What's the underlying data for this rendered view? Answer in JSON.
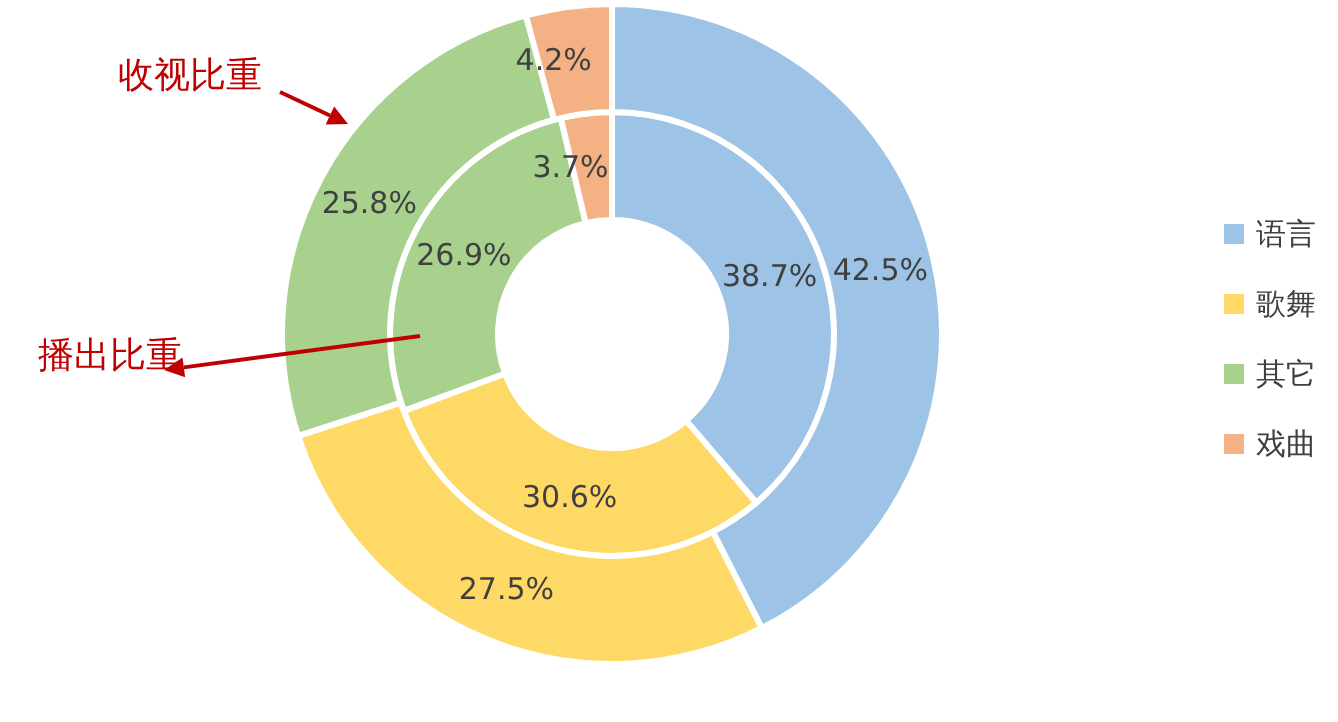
{
  "chart_data": {
    "type": "donut",
    "categories": [
      "语言",
      "歌舞",
      "其它",
      "戏曲"
    ],
    "colors": [
      "#9dc3e6",
      "#ffd966",
      "#a9d18e",
      "#f4b183"
    ],
    "series": [
      {
        "name": "播出比重",
        "values": [
          38.7,
          30.6,
          26.9,
          3.7
        ],
        "value_labels": [
          "38.7%",
          "30.6%",
          "26.9%",
          "3.7%"
        ]
      },
      {
        "name": "收视比重",
        "values": [
          42.5,
          27.5,
          25.8,
          4.2
        ],
        "value_labels": [
          "42.5%",
          "27.5%",
          "25.8%",
          "4.2%"
        ]
      }
    ],
    "legend": "right"
  }
}
